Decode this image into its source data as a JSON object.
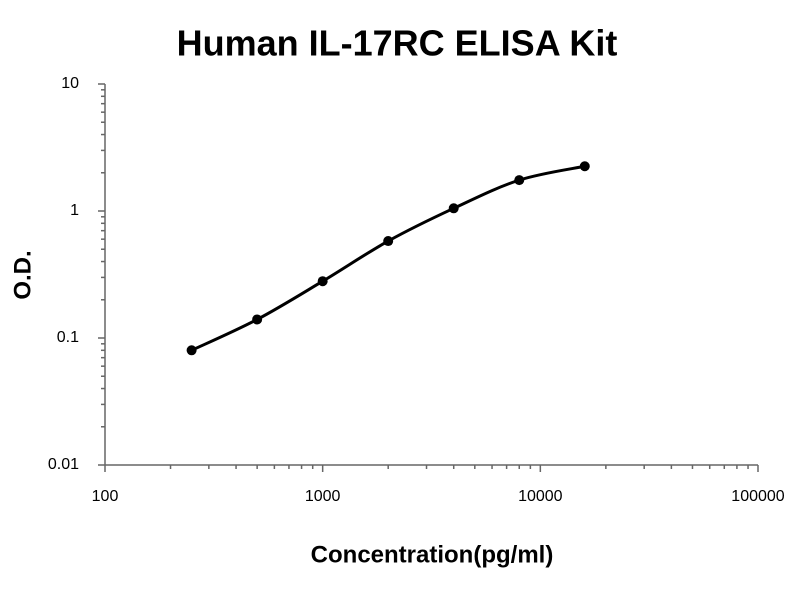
{
  "chart_data": {
    "type": "scatter",
    "title": "Human IL-17RC ELISA Kit",
    "x_label": "Concentration(pg/ml)",
    "y_label": "O.D.",
    "x": [
      250,
      500,
      1000,
      2000,
      4000,
      8000,
      16000
    ],
    "values": [
      0.08,
      0.14,
      0.28,
      0.58,
      1.05,
      1.75,
      2.25
    ],
    "color": "#000000",
    "fit_line": true,
    "x_log": true,
    "y_log": true,
    "grid": false,
    "xlim": [
      100,
      100000
    ],
    "xticks": [
      100,
      1000,
      10000,
      100000
    ],
    "ylim": [
      0.01,
      10
    ],
    "yticks": [
      0.01,
      0.1,
      1,
      10
    ]
  }
}
